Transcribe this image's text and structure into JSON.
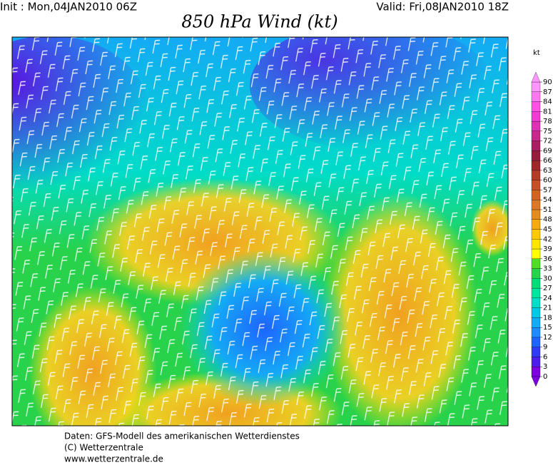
{
  "header": {
    "init": "Init : Mon,04JAN2010 06Z",
    "valid": "Valid: Fri,08JAN2010 18Z",
    "title": "850 hPa Wind (kt)"
  },
  "legend": {
    "unit": "kt",
    "ticks": [
      0,
      3,
      6,
      9,
      12,
      15,
      18,
      21,
      24,
      27,
      30,
      33,
      36,
      39,
      42,
      45,
      48,
      51,
      54,
      57,
      60,
      63,
      66,
      69,
      72,
      75,
      78,
      81,
      84,
      87,
      90
    ],
    "colors": [
      "#7d00dd",
      "#4b1fe6",
      "#2f3cf0",
      "#1e64ff",
      "#1e8cff",
      "#14aaf5",
      "#00c8e6",
      "#00dcc8",
      "#00e6a0",
      "#00dc78",
      "#28d24b",
      "#50dc28",
      "#ffff00",
      "#ffe600",
      "#ffc800",
      "#f5aa14",
      "#e68c1e",
      "#dc7828",
      "#d2641e",
      "#c85028",
      "#b43c28",
      "#a02828",
      "#961e3c",
      "#aa1e64",
      "#c8288c",
      "#dc32b4",
      "#f03cd2",
      "#ff50e6",
      "#ff78f0",
      "#ff96ff"
    ]
  },
  "footer": [
    "Daten: GFS-Modell des amerikanischen Wetterdienstes",
    "(C) Wetterzentrale",
    "www.wetterzentrale.de"
  ]
}
